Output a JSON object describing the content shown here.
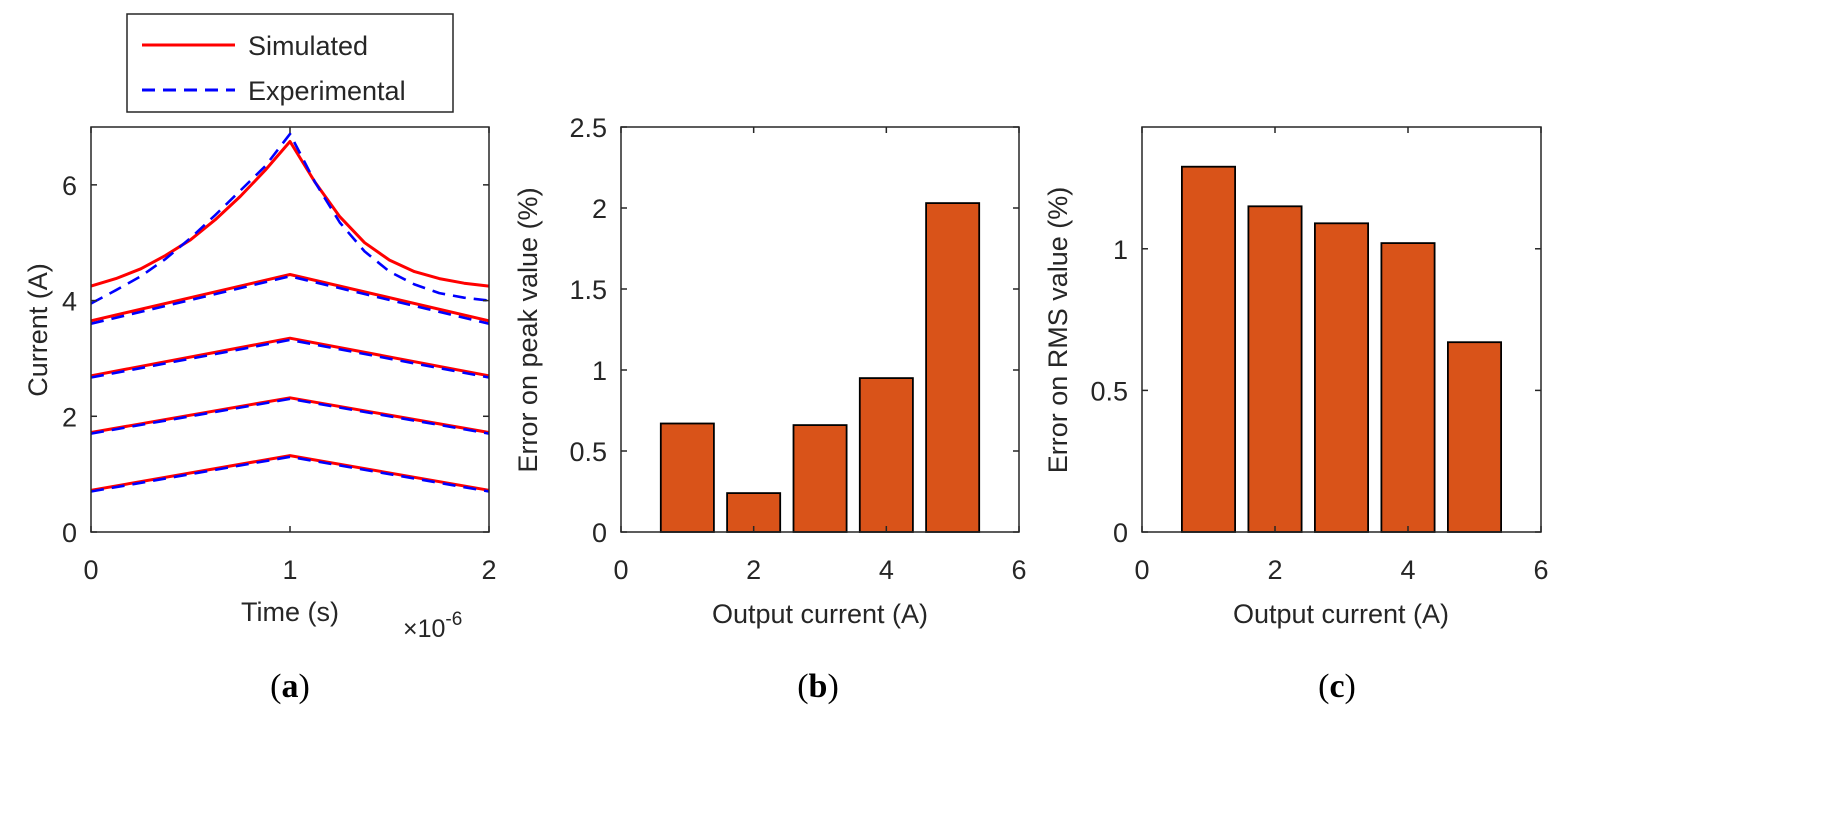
{
  "chart_data": [
    {
      "type": "line",
      "panel_label": "a",
      "xlabel": "Time (s)",
      "x_multiplier": "×10",
      "x_multiplier_exp": "-6",
      "ylabel": "Current (A)",
      "xlim": [
        0,
        2
      ],
      "ylim": [
        0,
        7
      ],
      "xticks": [
        "0",
        "1",
        "2"
      ],
      "yticks": [
        "0",
        "2",
        "4",
        "6"
      ],
      "legend": {
        "position": "top-left-outside",
        "entries": [
          "Simulated",
          "Experimental"
        ]
      },
      "colors": {
        "simulated": "#ff0000",
        "experimental": "#0000ff"
      },
      "series": [
        {
          "name": "Simulated",
          "x": [
            0,
            0.125,
            0.25,
            0.375,
            0.5,
            0.625,
            0.75,
            0.875,
            1.0,
            1.125,
            1.25,
            1.375,
            1.5,
            1.625,
            1.75,
            1.875,
            2.0
          ],
          "values": [
            4.25,
            4.38,
            4.55,
            4.78,
            5.05,
            5.4,
            5.8,
            6.25,
            6.75,
            6.05,
            5.45,
            5.0,
            4.7,
            4.5,
            4.38,
            4.3,
            4.25
          ]
        },
        {
          "name": "Experimental",
          "x": [
            0,
            0.125,
            0.25,
            0.375,
            0.5,
            0.625,
            0.75,
            0.875,
            1.0,
            1.125,
            1.25,
            1.375,
            1.5,
            1.625,
            1.75,
            1.875,
            2.0
          ],
          "values": [
            3.95,
            4.18,
            4.42,
            4.72,
            5.08,
            5.48,
            5.9,
            6.32,
            6.88,
            6.05,
            5.35,
            4.85,
            4.5,
            4.28,
            4.13,
            4.05,
            4.0
          ]
        },
        {
          "name": "Simulated",
          "x": [
            0,
            1,
            2
          ],
          "values": [
            3.65,
            4.45,
            3.65
          ]
        },
        {
          "name": "Experimental",
          "x": [
            0,
            1,
            2
          ],
          "values": [
            3.6,
            4.42,
            3.6
          ]
        },
        {
          "name": "Simulated",
          "x": [
            0,
            1,
            2
          ],
          "values": [
            2.7,
            3.35,
            2.7
          ]
        },
        {
          "name": "Experimental",
          "x": [
            0,
            1,
            2
          ],
          "values": [
            2.67,
            3.32,
            2.67
          ]
        },
        {
          "name": "Simulated",
          "x": [
            0,
            1,
            2
          ],
          "values": [
            1.72,
            2.32,
            1.72
          ]
        },
        {
          "name": "Experimental",
          "x": [
            0,
            1,
            2
          ],
          "values": [
            1.7,
            2.3,
            1.7
          ]
        },
        {
          "name": "Simulated",
          "x": [
            0,
            1,
            2
          ],
          "values": [
            0.72,
            1.32,
            0.72
          ]
        },
        {
          "name": "Experimental",
          "x": [
            0,
            1,
            2
          ],
          "values": [
            0.7,
            1.3,
            0.7
          ]
        }
      ]
    },
    {
      "type": "bar",
      "panel_label": "b",
      "xlabel": "Output current (A)",
      "ylabel": "Error on peak value (%)",
      "xlim": [
        0,
        6
      ],
      "ylim": [
        0,
        2.5
      ],
      "xticks": [
        "0",
        "2",
        "4",
        "6"
      ],
      "yticks": [
        "0",
        "0.5",
        "1",
        "1.5",
        "2",
        "2.5"
      ],
      "bar_color": "#d95319",
      "x": [
        1,
        2,
        3,
        4,
        5
      ],
      "values": [
        0.67,
        0.24,
        0.66,
        0.95,
        2.03
      ]
    },
    {
      "type": "bar",
      "panel_label": "c",
      "xlabel": "Output current (A)",
      "ylabel": "Error on RMS value (%)",
      "xlim": [
        0,
        6
      ],
      "ylim": [
        0,
        1.43
      ],
      "xticks": [
        "0",
        "2",
        "4",
        "6"
      ],
      "yticks": [
        "0",
        "0.5",
        "1"
      ],
      "bar_color": "#d95319",
      "x": [
        1,
        2,
        3,
        4,
        5
      ],
      "values": [
        1.29,
        1.15,
        1.09,
        1.02,
        0.67
      ]
    }
  ]
}
